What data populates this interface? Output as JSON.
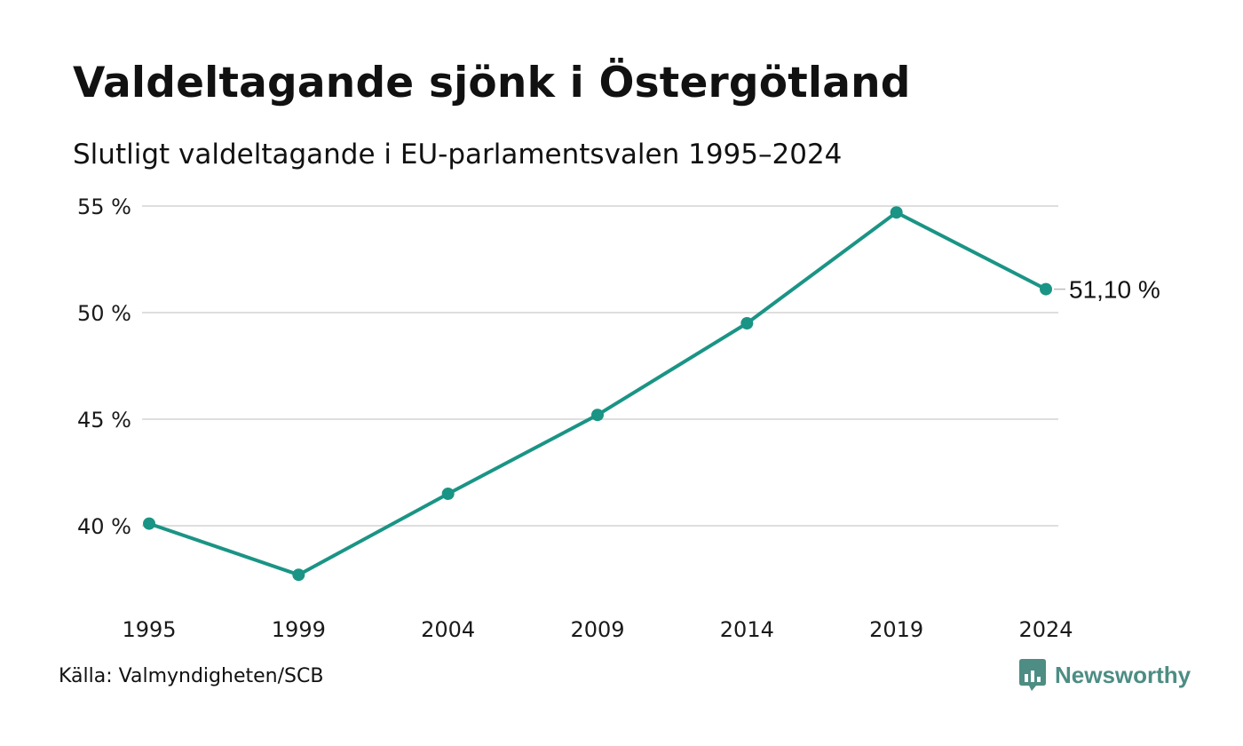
{
  "title": "Valdeltagande sjönk i Östergötland",
  "subtitle": "Slutligt valdeltagande i EU-parlamentsvalen 1995–2024",
  "source": "Källa: Valmyndigheten/SCB",
  "brand": {
    "name": "Newsworthy",
    "icon": "newsworthy-logo-icon",
    "color": "#4d8d83"
  },
  "chart_data": {
    "type": "line",
    "x": [
      "1995",
      "1999",
      "2004",
      "2009",
      "2014",
      "2019",
      "2024"
    ],
    "series": [
      {
        "values": [
          40.1,
          37.7,
          41.5,
          45.2,
          49.5,
          54.7,
          51.1
        ],
        "color": "#1a9485"
      }
    ],
    "yticks": [
      "40 %",
      "45 %",
      "50 %",
      "55 %"
    ],
    "ytick_values": [
      40,
      45,
      50,
      55
    ],
    "ylim": [
      37.5,
      55
    ],
    "grid": true,
    "end_label": "51,10 %",
    "xlabel": "",
    "ylabel": ""
  }
}
